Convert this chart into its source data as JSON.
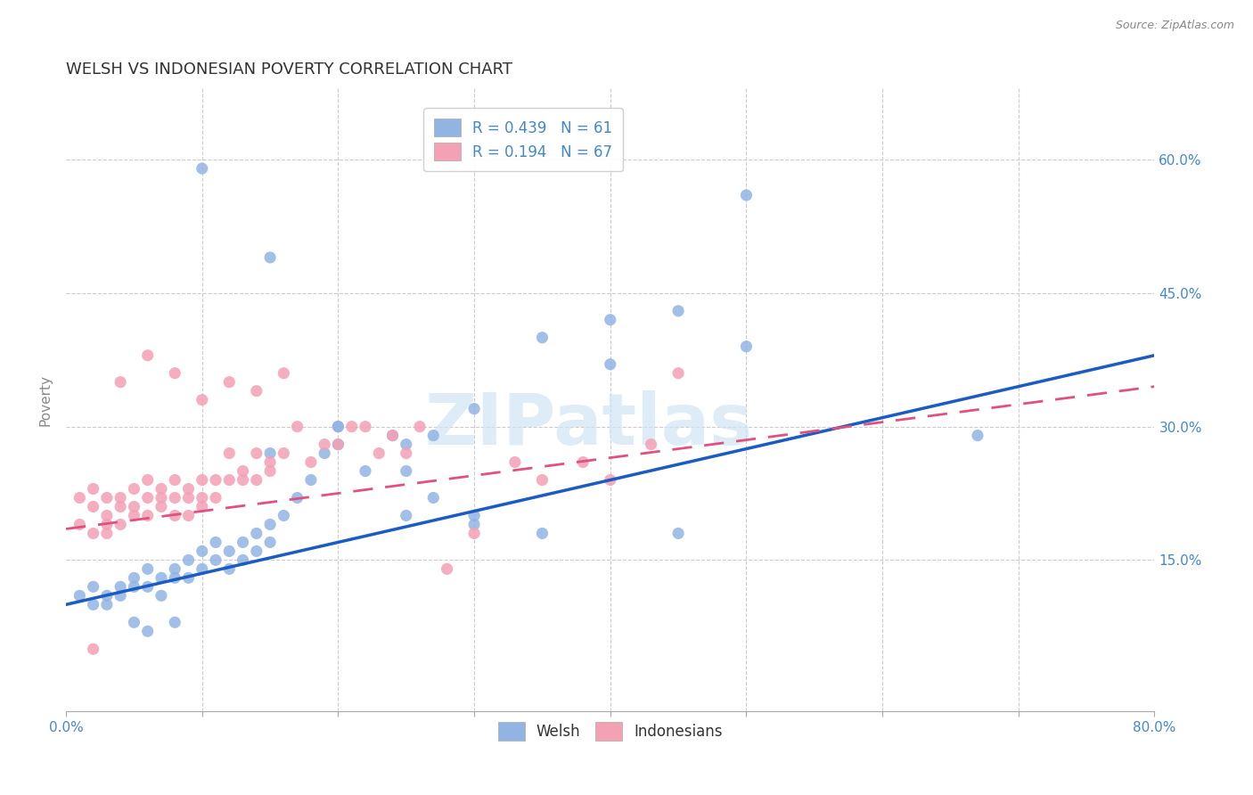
{
  "title": "WELSH VS INDONESIAN POVERTY CORRELATION CHART",
  "source": "Source: ZipAtlas.com",
  "ylabel": "Poverty",
  "xlim": [
    0.0,
    0.8
  ],
  "ylim": [
    -0.02,
    0.68
  ],
  "xtick_pos": [
    0.0,
    0.1,
    0.2,
    0.3,
    0.4,
    0.5,
    0.6,
    0.7,
    0.8
  ],
  "xticklabels": [
    "0.0%",
    "",
    "",
    "",
    "",
    "",
    "",
    "",
    "80.0%"
  ],
  "ytick_positions": [
    0.15,
    0.3,
    0.45,
    0.6
  ],
  "ytick_labels": [
    "15.0%",
    "30.0%",
    "45.0%",
    "60.0%"
  ],
  "welsh_R": 0.439,
  "welsh_N": 61,
  "indonesian_R": 0.194,
  "indonesian_N": 67,
  "welsh_color": "#92b4e3",
  "indonesian_color": "#f4a0b5",
  "welsh_line_color": "#1a5bc4",
  "indonesian_line_color": "#e05080",
  "legend_text_color": "#4488cc",
  "ytick_color": "#4488cc",
  "watermark_text": "ZIPatlas",
  "watermark_color": "#d0e4f5",
  "welsh_line_start_y": 0.1,
  "welsh_line_end_y": 0.38,
  "indo_line_start_y": 0.185,
  "indo_line_end_y": 0.345,
  "welsh_scatter_x": [
    0.01,
    0.02,
    0.02,
    0.03,
    0.03,
    0.04,
    0.04,
    0.05,
    0.05,
    0.06,
    0.06,
    0.07,
    0.07,
    0.08,
    0.08,
    0.09,
    0.09,
    0.1,
    0.1,
    0.11,
    0.11,
    0.12,
    0.12,
    0.13,
    0.13,
    0.14,
    0.14,
    0.15,
    0.15,
    0.16,
    0.17,
    0.18,
    0.19,
    0.2,
    0.22,
    0.24,
    0.27,
    0.3,
    0.35,
    0.4,
    0.45,
    0.5,
    0.27,
    0.3,
    0.25,
    0.2,
    0.15,
    0.35,
    0.25,
    0.3,
    0.4,
    0.67,
    0.45,
    0.5,
    0.25,
    0.2,
    0.15,
    0.1,
    0.08,
    0.06,
    0.05
  ],
  "welsh_scatter_y": [
    0.11,
    0.1,
    0.12,
    0.11,
    0.1,
    0.12,
    0.11,
    0.13,
    0.12,
    0.14,
    0.12,
    0.13,
    0.11,
    0.14,
    0.13,
    0.15,
    0.13,
    0.16,
    0.14,
    0.17,
    0.15,
    0.16,
    0.14,
    0.17,
    0.15,
    0.18,
    0.16,
    0.19,
    0.17,
    0.2,
    0.22,
    0.24,
    0.27,
    0.28,
    0.25,
    0.29,
    0.22,
    0.2,
    0.18,
    0.42,
    0.18,
    0.39,
    0.29,
    0.19,
    0.2,
    0.3,
    0.27,
    0.4,
    0.25,
    0.32,
    0.37,
    0.29,
    0.43,
    0.56,
    0.28,
    0.3,
    0.49,
    0.59,
    0.08,
    0.07,
    0.08
  ],
  "indonesian_scatter_x": [
    0.01,
    0.01,
    0.02,
    0.02,
    0.02,
    0.03,
    0.03,
    0.03,
    0.04,
    0.04,
    0.04,
    0.05,
    0.05,
    0.05,
    0.06,
    0.06,
    0.06,
    0.07,
    0.07,
    0.07,
    0.08,
    0.08,
    0.08,
    0.09,
    0.09,
    0.09,
    0.1,
    0.1,
    0.1,
    0.11,
    0.11,
    0.12,
    0.12,
    0.13,
    0.13,
    0.14,
    0.14,
    0.15,
    0.15,
    0.16,
    0.17,
    0.18,
    0.19,
    0.2,
    0.21,
    0.22,
    0.23,
    0.24,
    0.25,
    0.26,
    0.28,
    0.3,
    0.33,
    0.35,
    0.38,
    0.4,
    0.43,
    0.45,
    0.08,
    0.1,
    0.12,
    0.14,
    0.16,
    0.06,
    0.04,
    0.03,
    0.02
  ],
  "indonesian_scatter_y": [
    0.19,
    0.22,
    0.21,
    0.18,
    0.23,
    0.2,
    0.22,
    0.19,
    0.22,
    0.19,
    0.21,
    0.21,
    0.23,
    0.2,
    0.22,
    0.2,
    0.24,
    0.21,
    0.23,
    0.22,
    0.22,
    0.2,
    0.24,
    0.22,
    0.2,
    0.23,
    0.22,
    0.24,
    0.21,
    0.24,
    0.22,
    0.24,
    0.27,
    0.25,
    0.24,
    0.24,
    0.27,
    0.26,
    0.25,
    0.27,
    0.3,
    0.26,
    0.28,
    0.28,
    0.3,
    0.3,
    0.27,
    0.29,
    0.27,
    0.3,
    0.14,
    0.18,
    0.26,
    0.24,
    0.26,
    0.24,
    0.28,
    0.36,
    0.36,
    0.33,
    0.35,
    0.34,
    0.36,
    0.38,
    0.35,
    0.18,
    0.05
  ],
  "grid_color": "#cccccc",
  "background_color": "#ffffff"
}
